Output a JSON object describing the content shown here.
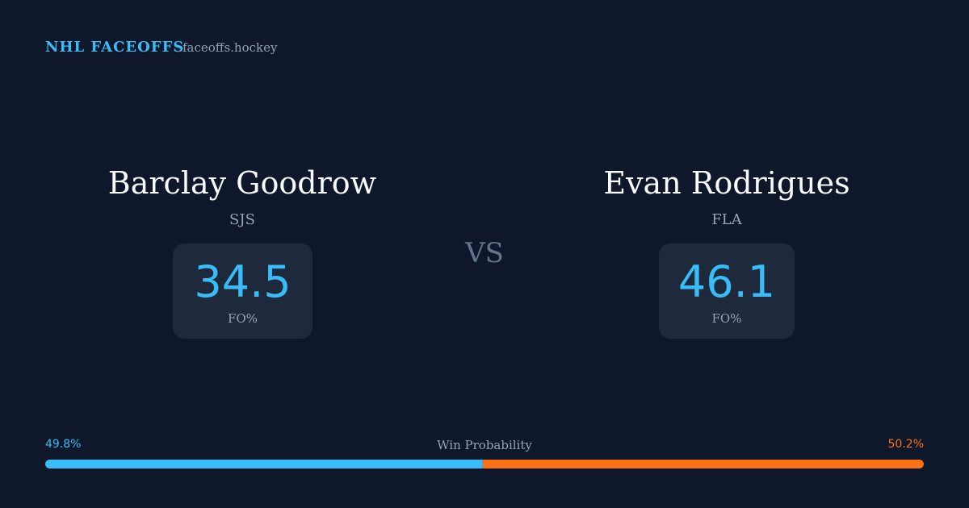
{
  "header": {
    "title": "NHL FACEOFFS",
    "site": "faceoffs.hockey"
  },
  "players": [
    {
      "name": "Barclay Goodrow",
      "team": "SJS",
      "stat": 34.5,
      "stat_label": "FO%"
    },
    {
      "name": "Evan Rodrigues",
      "team": "FLA",
      "stat": 46.1,
      "stat_label": "FO%"
    }
  ],
  "vs": "VS",
  "win_probability": {
    "label": "Win Probability",
    "values": [
      49.8,
      50.2
    ],
    "value_labels": [
      "49.8%",
      "50.2%"
    ],
    "colors": [
      "#38bdf8",
      "#f97316"
    ]
  }
}
